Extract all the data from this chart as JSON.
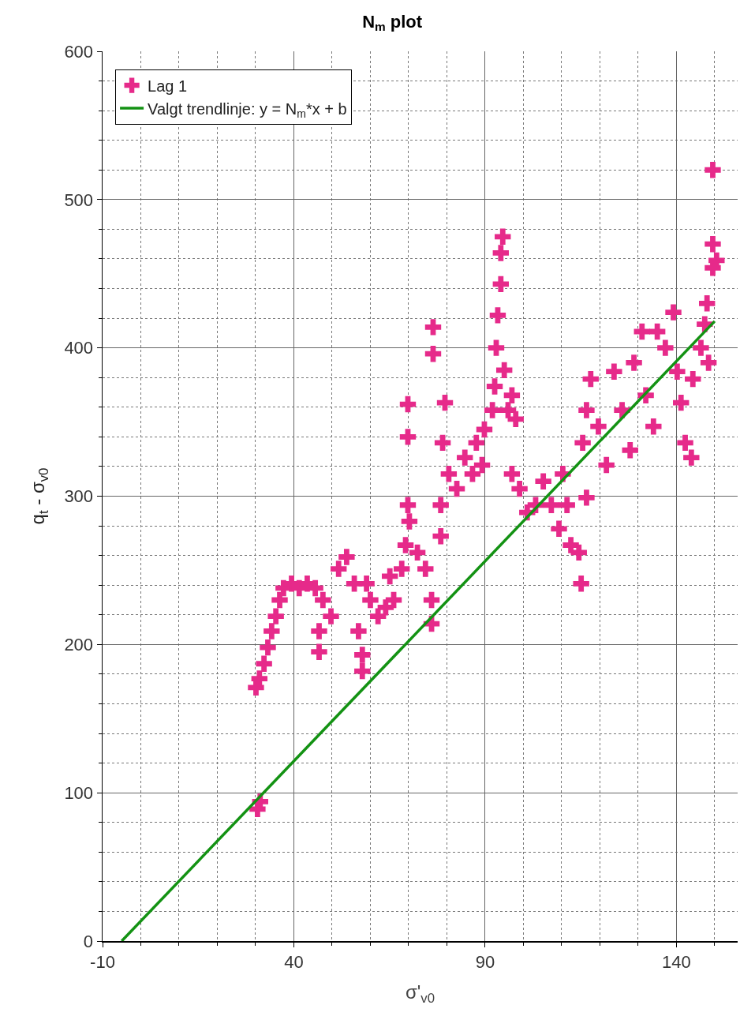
{
  "chart_data": {
    "type": "scatter",
    "title": "N$_{m}$ plot",
    "xlabel": "σ'$_{v0}$",
    "ylabel": "q$_{t}$ - σ$_{v0}$",
    "xlim": [
      -10,
      156
    ],
    "xticks": [
      -10,
      40,
      90,
      140
    ],
    "ylim": [
      0,
      600
    ],
    "yticks": [
      0,
      100,
      200,
      300,
      400,
      500,
      600
    ],
    "grid": true,
    "legend": "top left",
    "marker": "cross",
    "series": [
      {
        "name": "Lag 1",
        "color": "#e62a8a",
        "x": [
          31.2,
          30.5,
          30.1,
          31,
          32.2,
          33.2,
          34.2,
          35.3,
          36.3,
          37.3,
          39.4,
          41.4,
          43.5,
          45.6,
          47.6,
          46.6,
          46.6,
          49.7,
          51.7,
          53.8,
          55.8,
          56.9,
          57.9,
          57.9,
          59,
          60,
          62,
          64,
          65.1,
          66.1,
          68.2,
          69.2,
          70.2,
          69.8,
          69.8,
          69.8,
          72.3,
          74.4,
          76,
          76,
          76.4,
          76.4,
          78.4,
          78.4,
          78.9,
          79.5,
          80.5,
          82.6,
          84.7,
          86.7,
          87.7,
          89.2,
          89.8,
          91.9,
          92.5,
          92.9,
          93.3,
          94.1,
          94.1,
          94.6,
          95,
          96,
          97,
          98,
          97,
          99,
          101,
          103.2,
          105.2,
          107.3,
          109.3,
          110.3,
          111.4,
          112.4,
          114.5,
          115.1,
          116.5,
          115.5,
          116.5,
          117.6,
          119.6,
          121.7,
          123.7,
          125.8,
          127.9,
          128.9,
          131,
          132,
          134,
          135,
          137.1,
          139.2,
          140.2,
          141.2,
          142.3,
          143.9,
          144.3,
          146.4,
          147.4,
          148,
          148.4,
          149.5,
          149.5,
          149.5,
          150.5
        ],
        "values": [
          94,
          89,
          171,
          177,
          187,
          198,
          209,
          219,
          230,
          238,
          241,
          238,
          241,
          238,
          230,
          209,
          195,
          219,
          251,
          259,
          241,
          209,
          193,
          182,
          241,
          230,
          219,
          225,
          246,
          230,
          251,
          267,
          283,
          294,
          340,
          362,
          262,
          251,
          230,
          214,
          414,
          396,
          273,
          294,
          336,
          363,
          315,
          305,
          326,
          315,
          336,
          321,
          345,
          358,
          374,
          400,
          422,
          443,
          464,
          475,
          385,
          358,
          368,
          352,
          315,
          305,
          289,
          294,
          310,
          294,
          278,
          315,
          294,
          267,
          262,
          241,
          299,
          336,
          358,
          379,
          347,
          321,
          384,
          358,
          331,
          390,
          411,
          368,
          347,
          411,
          400,
          424,
          384,
          363,
          336,
          326,
          379,
          400,
          416,
          430,
          390,
          454,
          470,
          520,
          459
        ]
      },
      {
        "name": "Valgt trendlinje: y = N$_{m}$*x + b",
        "type": "line",
        "color": "#139213",
        "line_style": "solid",
        "marker": "none",
        "x": [
          -5,
          150
        ],
        "values": [
          0,
          418
        ]
      }
    ]
  }
}
